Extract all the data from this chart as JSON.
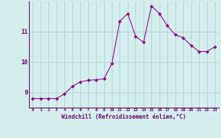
{
  "x": [
    0,
    1,
    2,
    3,
    4,
    5,
    6,
    7,
    8,
    9,
    10,
    11,
    12,
    13,
    14,
    15,
    16,
    17,
    18,
    19,
    20,
    21,
    22,
    23
  ],
  "y": [
    8.8,
    8.8,
    8.8,
    8.8,
    8.95,
    9.2,
    9.35,
    9.4,
    9.42,
    9.45,
    9.95,
    11.35,
    11.6,
    10.85,
    10.65,
    11.85,
    11.6,
    11.2,
    10.9,
    10.8,
    10.55,
    10.35,
    10.35,
    10.5
  ],
  "line_color": "#880088",
  "marker": "D",
  "marker_size": 2.2,
  "bg_color": "#d4eeee",
  "grid_color": "#b0cccc",
  "xlabel": "Windchill (Refroidissement éolien,°C)",
  "xlabel_color": "#660066",
  "tick_color": "#660066",
  "axis_color": "#660066",
  "ytick_labels": [
    "9",
    "10",
    "11"
  ],
  "ytick_vals": [
    9,
    10,
    11
  ],
  "ylim": [
    8.5,
    12.0
  ],
  "xlim": [
    -0.5,
    23.5
  ],
  "xticks": [
    0,
    1,
    2,
    3,
    4,
    5,
    6,
    7,
    8,
    9,
    10,
    11,
    12,
    13,
    14,
    15,
    16,
    17,
    18,
    19,
    20,
    21,
    22,
    23
  ]
}
